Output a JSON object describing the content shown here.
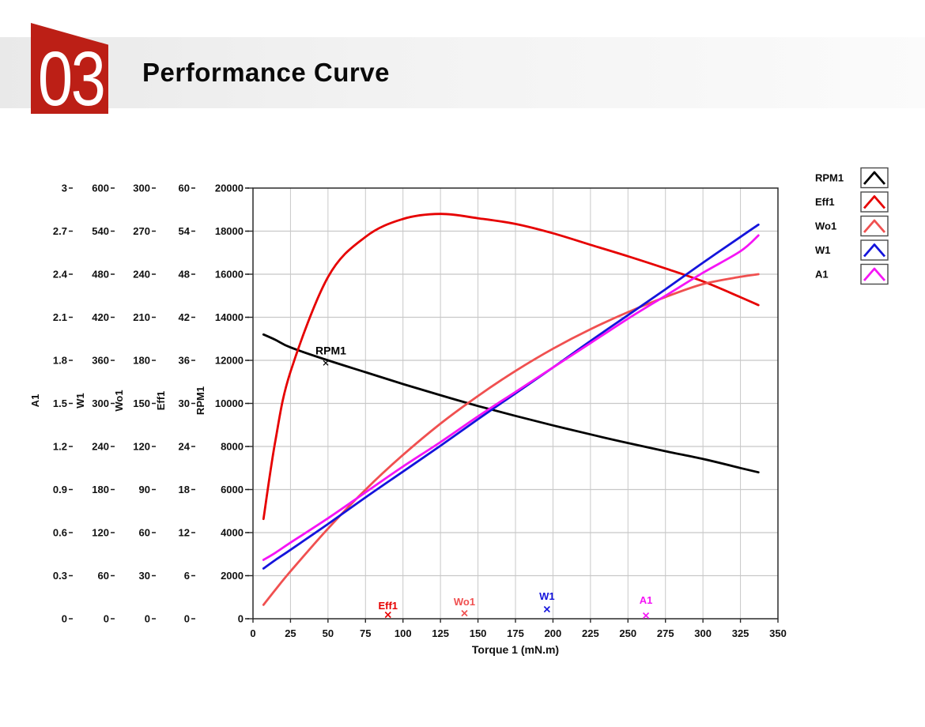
{
  "header": {
    "number": "03",
    "title": "Performance Curve",
    "accent_color": "#bc1f16"
  },
  "chart_data": {
    "type": "line",
    "title": "",
    "grid": true,
    "grid_color": "#c8c8c8",
    "legend_position": "top-right",
    "x_axis": {
      "label": "Torque 1 (mN.m)",
      "min": 0,
      "max": 350,
      "tick_labels": [
        "0",
        "25",
        "50",
        "75",
        "100",
        "125",
        "150",
        "175",
        "200",
        "225",
        "250",
        "275",
        "300",
        "325",
        "350"
      ]
    },
    "y_axes": [
      {
        "name": "A1",
        "max": 3,
        "tick_labels": [
          "3",
          "2.7",
          "2.4",
          "2.1",
          "1.8",
          "1.5",
          "1.2",
          "0.9",
          "0.6",
          "0.3",
          "0"
        ]
      },
      {
        "name": "W1",
        "max": 600,
        "tick_labels": [
          "600",
          "540",
          "480",
          "420",
          "360",
          "300",
          "240",
          "180",
          "120",
          "60",
          "0"
        ]
      },
      {
        "name": "Wo1",
        "max": 300,
        "tick_labels": [
          "300",
          "270",
          "240",
          "210",
          "180",
          "150",
          "120",
          "90",
          "60",
          "30",
          "0"
        ]
      },
      {
        "name": "Eff1",
        "max": 60,
        "tick_labels": [
          "60",
          "54",
          "48",
          "42",
          "36",
          "30",
          "24",
          "18",
          "12",
          "6",
          "0"
        ]
      },
      {
        "name": "RPM1",
        "max": 20000,
        "tick_labels": [
          "20000",
          "18000",
          "16000",
          "14000",
          "12000",
          "10000",
          "8000",
          "6000",
          "4000",
          "2000",
          "0"
        ]
      }
    ],
    "x": [
      7,
      15,
      25,
      50,
      75,
      100,
      125,
      150,
      175,
      200,
      225,
      250,
      275,
      300,
      325,
      337
    ],
    "series": [
      {
        "name": "RPM1",
        "axis": "RPM1",
        "color": "#000000",
        "values": [
          13200,
          12950,
          12600,
          12000,
          11450,
          10900,
          10380,
          9880,
          9420,
          8980,
          8560,
          8160,
          7780,
          7420,
          7000,
          6800
        ]
      },
      {
        "name": "Eff1",
        "axis": "Eff1",
        "color": "#e60000",
        "values": [
          13.9,
          24.9,
          34.4,
          47.6,
          53.2,
          55.7,
          56.4,
          55.8,
          55.0,
          53.7,
          52.1,
          50.5,
          48.8,
          47.0,
          44.8,
          43.7
        ]
      },
      {
        "name": "Wo1",
        "axis": "Wo1",
        "color": "#f05050",
        "values": [
          9.7,
          20.3,
          33.0,
          62.8,
          89.9,
          114.1,
          135.9,
          155.2,
          172.6,
          188.1,
          201.7,
          213.6,
          224.1,
          233.1,
          238.2,
          240.0
        ]
      },
      {
        "name": "W1",
        "axis": "W1",
        "color": "#1414dc",
        "values": [
          70,
          82,
          96,
          132,
          169,
          205,
          241,
          278,
          314,
          350,
          387,
          423,
          459,
          496,
          532,
          549
        ]
      },
      {
        "name": "A1",
        "axis": "A1",
        "color": "#f514f5",
        "values": [
          0.41,
          0.46,
          0.53,
          0.7,
          0.88,
          1.06,
          1.23,
          1.41,
          1.58,
          1.75,
          1.92,
          2.09,
          2.25,
          2.41,
          2.56,
          2.67
        ]
      }
    ],
    "legend": [
      {
        "label": "RPM1",
        "color": "#000000"
      },
      {
        "label": "Eff1",
        "color": "#e60000"
      },
      {
        "label": "Wo1",
        "color": "#f05050"
      },
      {
        "label": "W1",
        "color": "#1414dc"
      },
      {
        "label": "A1",
        "color": "#f514f5"
      }
    ],
    "cursors": [
      {
        "label": "Eff1",
        "torque": 90,
        "color": "#e60000",
        "marker_height": 5,
        "label_gap": 7
      },
      {
        "label": "Wo1",
        "torque": 141,
        "color": "#f05050",
        "marker_height": 7,
        "label_gap": 10
      },
      {
        "label": "W1",
        "torque": 196,
        "color": "#1414dc",
        "marker_height": 12,
        "label_gap": 12
      },
      {
        "label": "A1",
        "torque": 262,
        "color": "#f514f5",
        "marker_height": 4,
        "label_gap": 15
      }
    ],
    "annotations": [
      {
        "text": "RPM1",
        "series": "RPM1",
        "torque": 48.5,
        "value": 11880
      }
    ]
  }
}
